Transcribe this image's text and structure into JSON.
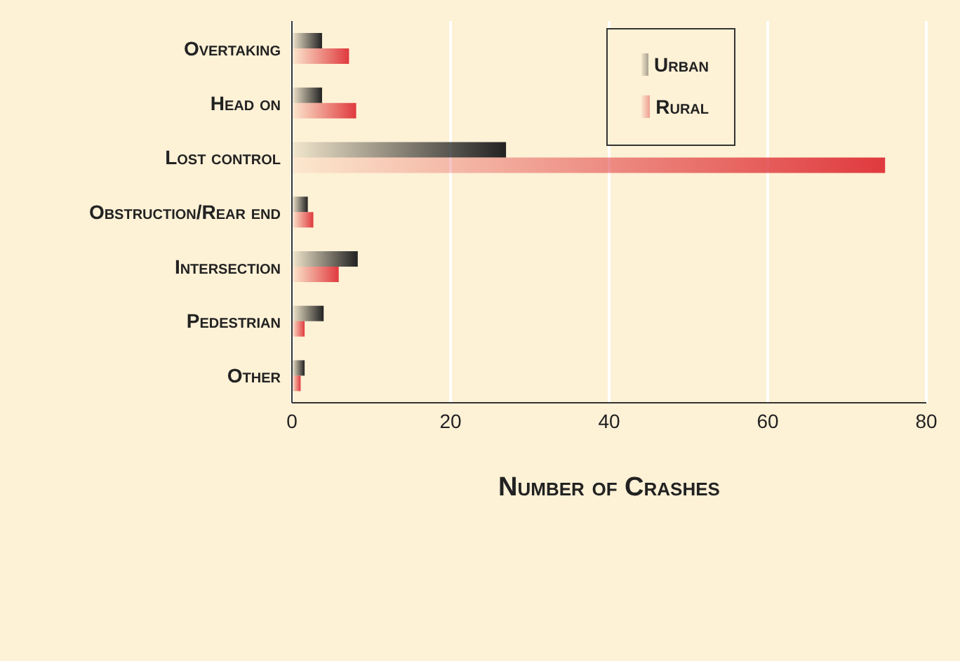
{
  "chart_data": {
    "type": "bar",
    "orientation": "horizontal",
    "xlabel": "Number of Crashes",
    "categories": [
      "Overtaking",
      "Head on",
      "Lost control",
      "Obstruction/Rear end",
      "Intersection",
      "Pedestrian",
      "Other"
    ],
    "series": [
      {
        "name": "Urban",
        "color": "#222222",
        "values": [
          3.8,
          3.8,
          27,
          2,
          8.3,
          4,
          1.6
        ]
      },
      {
        "name": "Rural",
        "color": "#e03a3e",
        "values": [
          7.2,
          8.1,
          74.8,
          2.7,
          5.9,
          1.6,
          1.1
        ]
      }
    ],
    "xlim": [
      0,
      80
    ],
    "xticks": [
      0,
      20,
      40,
      60,
      80
    ],
    "grid": "x",
    "legend": "top right"
  }
}
